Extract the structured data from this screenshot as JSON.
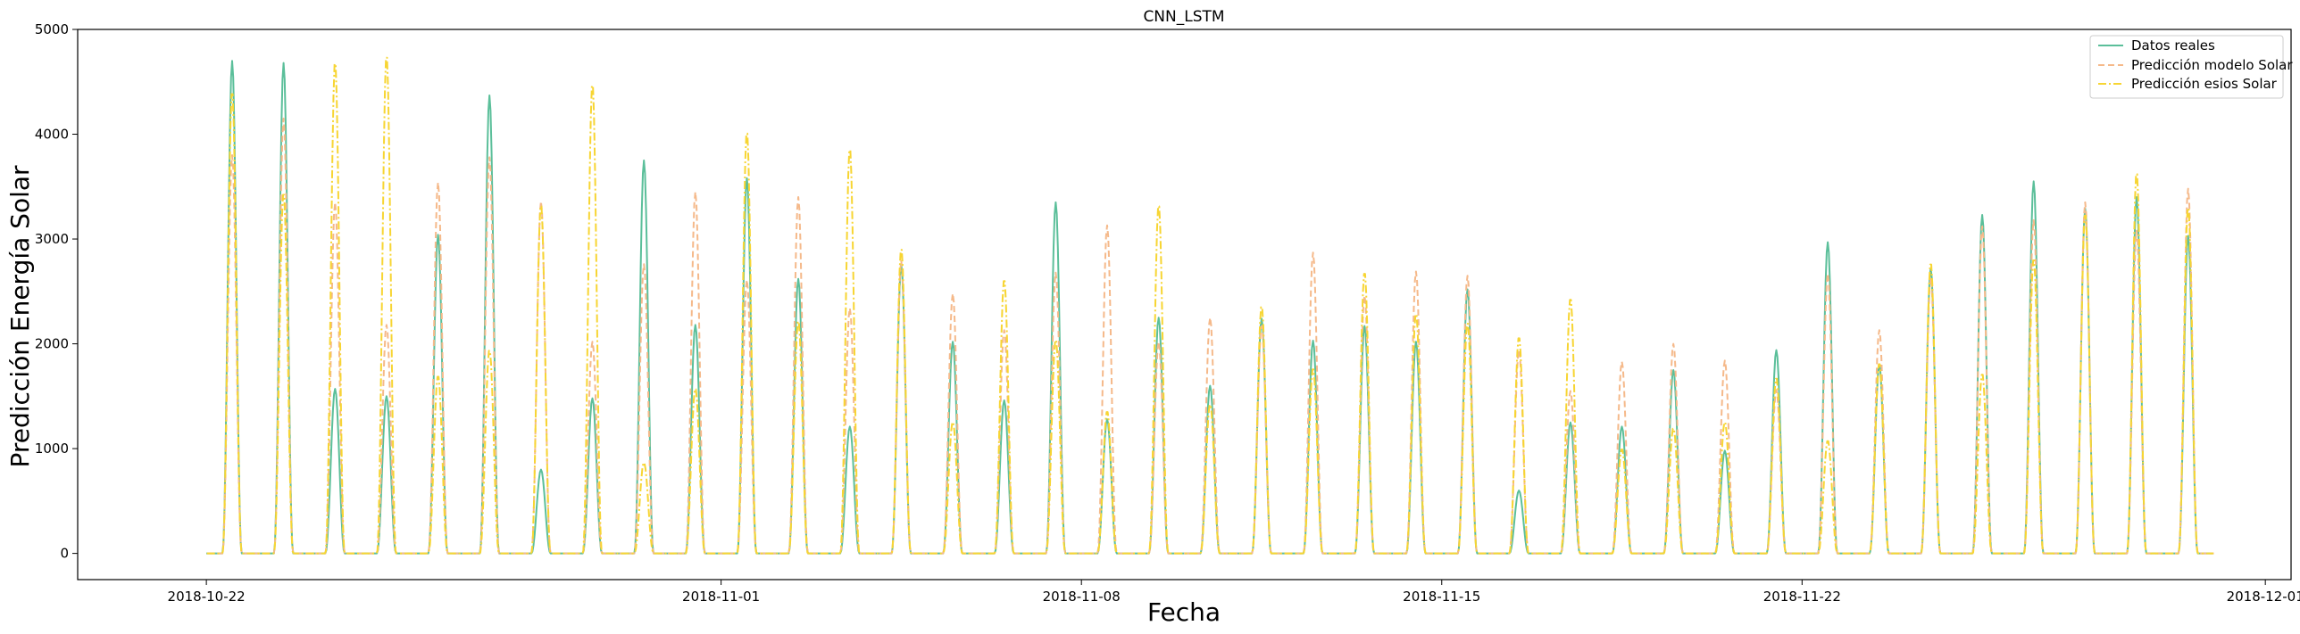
{
  "chart_data": {
    "type": "line",
    "title": "CNN_LSTM",
    "xlabel": "Fecha",
    "ylabel": "Predicción Energía Solar",
    "xlim": [
      "2018-10-19T12:00",
      "2018-12-01T12:00"
    ],
    "ylim": [
      -250,
      5000
    ],
    "x_ticks": [
      "2018-10-22",
      "2018-11-01",
      "2018-11-08",
      "2018-11-15",
      "2018-11-22",
      "2018-12-01"
    ],
    "y_ticks": [
      0,
      1000,
      2000,
      3000,
      4000,
      5000
    ],
    "grid": false,
    "legend_position": "top-right",
    "day_start": "2018-10-22",
    "series": [
      {
        "name": "Datos reales",
        "color": "#5bbf9a",
        "dash": "solid",
        "daily_peaks": [
          4700,
          4680,
          1570,
          1500,
          3040,
          4370,
          800,
          1480,
          3750,
          2180,
          3580,
          2620,
          1210,
          2750,
          2020,
          1460,
          3350,
          1280,
          2250,
          1600,
          2240,
          2030,
          2170,
          2020,
          2520,
          600,
          1250,
          1210,
          1750,
          980,
          1940,
          2970,
          1800,
          2720,
          3230,
          3550,
          3290,
          3400,
          3030
        ]
      },
      {
        "name": "Predicción modelo Solar",
        "color": "#f5b98a",
        "dash": "dashed",
        "daily_peaks": [
          3800,
          4150,
          3350,
          2180,
          3540,
          3780,
          3360,
          2020,
          2760,
          3450,
          2610,
          3400,
          2340,
          2790,
          2480,
          2130,
          2680,
          3130,
          2020,
          2250,
          2170,
          2870,
          2460,
          2690,
          2650,
          1940,
          1550,
          1830,
          2000,
          1840,
          1560,
          2670,
          2130,
          2630,
          3120,
          3180,
          3350,
          3080,
          3480
        ]
      },
      {
        "name": "Predicción esios Solar",
        "color": "#f7d533",
        "dash": "dashdot",
        "daily_peaks": [
          4420,
          3450,
          4710,
          4770,
          1700,
          1950,
          3340,
          4500,
          870,
          1580,
          4040,
          2230,
          3880,
          2920,
          1260,
          2620,
          2050,
          1360,
          3340,
          1430,
          2370,
          1770,
          2690,
          2300,
          2210,
          2070,
          2440,
          1000,
          1200,
          1260,
          1680,
          1080,
          1820,
          2780,
          1720,
          2820,
          3250,
          3650,
          3320
        ]
      }
    ]
  }
}
